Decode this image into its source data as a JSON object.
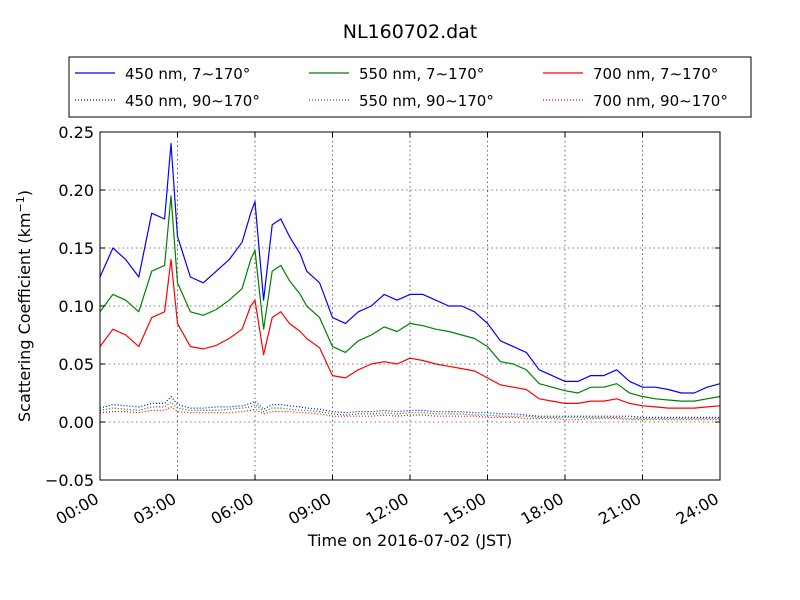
{
  "chart_data": {
    "type": "line",
    "title": "NL160702.dat",
    "xlabel": "Time on 2016-07-02 (JST)",
    "ylabel_main": "Scattering Coefficient (km",
    "ylabel_sup": "−1",
    "ylabel_close": ")",
    "xlim": [
      "00:00",
      "24:00"
    ],
    "ylim": [
      -0.05,
      0.25
    ],
    "x_ticks": [
      "00:00",
      "03:00",
      "06:00",
      "09:00",
      "12:00",
      "15:00",
      "18:00",
      "21:00",
      "24:00"
    ],
    "y_ticks": [
      "−0.05",
      "0.00",
      "0.05",
      "0.10",
      "0.15",
      "0.20",
      "0.25"
    ],
    "y_tick_values": [
      -0.05,
      0.0,
      0.05,
      0.1,
      0.15,
      0.2,
      0.25
    ],
    "grid": true,
    "legend_position": "top",
    "legend_entries": [
      {
        "label": "450 nm, 7∼170°",
        "color": "#0000ff",
        "style": "solid"
      },
      {
        "label": "550 nm, 7∼170°",
        "color": "#008000",
        "style": "solid"
      },
      {
        "label": "700 nm, 7∼170°",
        "color": "#ff0000",
        "style": "solid"
      },
      {
        "label": "450 nm, 90∼170°",
        "color": "#0000ff",
        "style": "dotted"
      },
      {
        "label": "550 nm, 90∼170°",
        "color": "#008000",
        "style": "dotted"
      },
      {
        "label": "700 nm, 90∼170°",
        "color": "#ff0000",
        "style": "dotted"
      }
    ],
    "x": [
      "00:00",
      "00:30",
      "01:00",
      "01:30",
      "02:00",
      "02:30",
      "02:45",
      "03:00",
      "03:30",
      "04:00",
      "04:30",
      "05:00",
      "05:30",
      "05:50",
      "06:00",
      "06:20",
      "06:40",
      "07:00",
      "07:20",
      "07:45",
      "08:00",
      "08:30",
      "09:00",
      "09:30",
      "10:00",
      "10:30",
      "11:00",
      "11:30",
      "12:00",
      "12:30",
      "13:00",
      "13:30",
      "14:00",
      "14:30",
      "15:00",
      "15:30",
      "16:00",
      "16:30",
      "17:00",
      "17:30",
      "18:00",
      "18:30",
      "19:00",
      "19:30",
      "20:00",
      "20:30",
      "21:00",
      "21:30",
      "22:00",
      "22:30",
      "23:00",
      "23:30",
      "24:00"
    ],
    "series": [
      {
        "name": "450 nm, 7∼170°",
        "color": "#0000ff",
        "style": "solid",
        "values": [
          0.125,
          0.15,
          0.14,
          0.125,
          0.18,
          0.175,
          0.24,
          0.16,
          0.125,
          0.12,
          0.13,
          0.14,
          0.155,
          0.18,
          0.19,
          0.105,
          0.17,
          0.175,
          0.16,
          0.145,
          0.13,
          0.12,
          0.09,
          0.085,
          0.095,
          0.1,
          0.11,
          0.105,
          0.11,
          0.11,
          0.105,
          0.1,
          0.1,
          0.095,
          0.085,
          0.07,
          0.065,
          0.06,
          0.045,
          0.04,
          0.035,
          0.035,
          0.04,
          0.04,
          0.045,
          0.035,
          0.03,
          0.03,
          0.028,
          0.025,
          0.025,
          0.03,
          0.033
        ]
      },
      {
        "name": "550 nm, 7∼170°",
        "color": "#008000",
        "style": "solid",
        "values": [
          0.095,
          0.11,
          0.105,
          0.095,
          0.13,
          0.135,
          0.195,
          0.12,
          0.095,
          0.092,
          0.097,
          0.105,
          0.115,
          0.14,
          0.148,
          0.08,
          0.13,
          0.135,
          0.122,
          0.11,
          0.1,
          0.09,
          0.065,
          0.06,
          0.07,
          0.075,
          0.082,
          0.078,
          0.085,
          0.083,
          0.08,
          0.078,
          0.075,
          0.072,
          0.065,
          0.052,
          0.05,
          0.045,
          0.033,
          0.03,
          0.027,
          0.025,
          0.03,
          0.03,
          0.033,
          0.025,
          0.022,
          0.02,
          0.019,
          0.018,
          0.018,
          0.02,
          0.022
        ]
      },
      {
        "name": "700 nm, 7∼170°",
        "color": "#ff0000",
        "style": "solid",
        "values": [
          0.065,
          0.08,
          0.075,
          0.065,
          0.09,
          0.095,
          0.14,
          0.085,
          0.065,
          0.063,
          0.066,
          0.072,
          0.08,
          0.1,
          0.105,
          0.058,
          0.09,
          0.095,
          0.085,
          0.078,
          0.072,
          0.064,
          0.04,
          0.038,
          0.045,
          0.05,
          0.052,
          0.05,
          0.055,
          0.053,
          0.05,
          0.048,
          0.046,
          0.044,
          0.038,
          0.032,
          0.03,
          0.028,
          0.02,
          0.018,
          0.016,
          0.016,
          0.018,
          0.018,
          0.02,
          0.016,
          0.014,
          0.013,
          0.012,
          0.012,
          0.012,
          0.013,
          0.014
        ]
      },
      {
        "name": "450 nm, 90∼170°",
        "color": "#0000ff",
        "style": "dotted",
        "values": [
          0.012,
          0.015,
          0.014,
          0.013,
          0.016,
          0.016,
          0.022,
          0.015,
          0.012,
          0.012,
          0.013,
          0.013,
          0.014,
          0.016,
          0.018,
          0.011,
          0.015,
          0.015,
          0.014,
          0.013,
          0.012,
          0.011,
          0.009,
          0.008,
          0.009,
          0.009,
          0.01,
          0.009,
          0.01,
          0.01,
          0.009,
          0.009,
          0.009,
          0.008,
          0.008,
          0.007,
          0.007,
          0.006,
          0.005,
          0.005,
          0.005,
          0.005,
          0.005,
          0.005,
          0.005,
          0.005,
          0.004,
          0.004,
          0.004,
          0.004,
          0.004,
          0.004,
          0.004
        ]
      },
      {
        "name": "550 nm, 90∼170°",
        "color": "#008000",
        "style": "dotted",
        "values": [
          0.01,
          0.012,
          0.011,
          0.01,
          0.013,
          0.013,
          0.017,
          0.012,
          0.01,
          0.01,
          0.01,
          0.011,
          0.012,
          0.013,
          0.015,
          0.009,
          0.012,
          0.012,
          0.011,
          0.01,
          0.01,
          0.009,
          0.007,
          0.006,
          0.007,
          0.007,
          0.008,
          0.007,
          0.008,
          0.008,
          0.007,
          0.007,
          0.007,
          0.006,
          0.006,
          0.005,
          0.005,
          0.005,
          0.004,
          0.004,
          0.004,
          0.004,
          0.004,
          0.004,
          0.004,
          0.003,
          0.003,
          0.003,
          0.003,
          0.003,
          0.003,
          0.003,
          0.003
        ]
      },
      {
        "name": "700 nm, 90∼170°",
        "color": "#ff0000",
        "style": "dotted",
        "values": [
          0.008,
          0.009,
          0.009,
          0.008,
          0.01,
          0.01,
          0.013,
          0.009,
          0.008,
          0.008,
          0.008,
          0.008,
          0.009,
          0.01,
          0.011,
          0.007,
          0.009,
          0.009,
          0.009,
          0.008,
          0.008,
          0.007,
          0.005,
          0.005,
          0.005,
          0.005,
          0.006,
          0.005,
          0.006,
          0.006,
          0.005,
          0.005,
          0.005,
          0.005,
          0.004,
          0.004,
          0.004,
          0.003,
          0.003,
          0.003,
          0.002,
          0.002,
          0.003,
          0.003,
          0.003,
          0.002,
          0.002,
          0.002,
          0.002,
          0.002,
          0.002,
          0.002,
          0.002
        ]
      }
    ]
  }
}
